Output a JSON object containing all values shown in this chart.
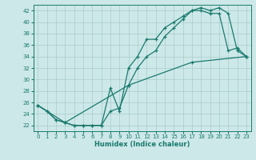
{
  "xlabel": "Humidex (Indice chaleur)",
  "xlim": [
    -0.5,
    23.5
  ],
  "ylim": [
    21.0,
    43.0
  ],
  "yticks": [
    22,
    24,
    26,
    28,
    30,
    32,
    34,
    36,
    38,
    40,
    42
  ],
  "xticks": [
    0,
    1,
    2,
    3,
    4,
    5,
    6,
    7,
    8,
    9,
    10,
    11,
    12,
    13,
    14,
    15,
    16,
    17,
    18,
    19,
    20,
    21,
    22,
    23
  ],
  "bg_color": "#cde8e8",
  "line_color": "#1a7a6e",
  "grid_color": "#a8cccc",
  "line1_x": [
    0,
    1,
    2,
    3,
    4,
    5,
    6,
    7,
    8,
    9,
    10,
    11,
    12,
    13,
    14,
    15,
    16,
    17,
    18,
    19,
    20,
    21,
    22,
    23
  ],
  "line1_y": [
    25.5,
    24.5,
    23.0,
    22.5,
    22.0,
    22.0,
    22.0,
    22.0,
    24.5,
    25.0,
    29.0,
    32.0,
    34.0,
    35.0,
    37.5,
    39.0,
    40.5,
    42.0,
    42.0,
    41.5,
    41.5,
    35.0,
    35.5,
    34.0
  ],
  "line2_x": [
    0,
    1,
    2,
    3,
    4,
    5,
    6,
    7,
    8,
    9,
    10,
    11,
    12,
    13,
    14,
    15,
    16,
    17,
    18,
    19,
    20,
    21,
    22,
    23
  ],
  "line2_y": [
    25.5,
    24.5,
    23.0,
    22.5,
    22.0,
    22.0,
    22.0,
    22.0,
    28.5,
    24.5,
    32.0,
    34.0,
    37.0,
    37.0,
    39.0,
    40.0,
    41.0,
    42.0,
    42.5,
    42.0,
    42.5,
    41.5,
    35.0,
    34.0
  ],
  "line3_x": [
    0,
    3,
    10,
    17,
    23
  ],
  "line3_y": [
    25.5,
    22.5,
    29.0,
    33.0,
    34.0
  ]
}
